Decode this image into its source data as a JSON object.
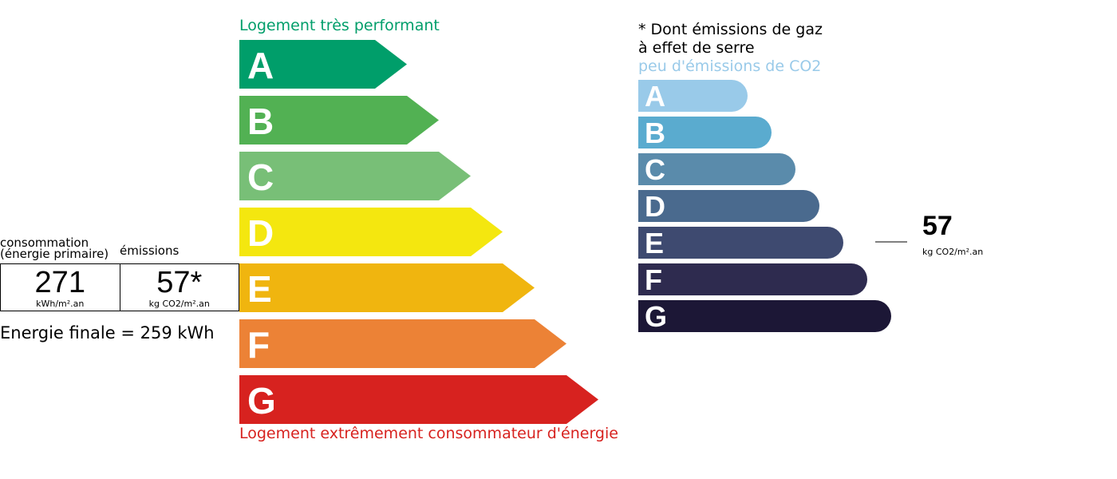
{
  "energy": {
    "title_top": "Logement très performant",
    "title_bottom": "Logement extrêmement consommateur d'énergie",
    "classes": [
      {
        "letter": "A",
        "color": "#009e6a"
      },
      {
        "letter": "B",
        "color": "#52b153"
      },
      {
        "letter": "C",
        "color": "#78bf77"
      },
      {
        "letter": "D",
        "color": "#f4e70f"
      },
      {
        "letter": "E",
        "color": "#f0b50f"
      },
      {
        "letter": "F",
        "color": "#ec8236"
      },
      {
        "letter": "G",
        "color": "#d7221f"
      }
    ]
  },
  "summary": {
    "consumption_label_1": "consommation",
    "consumption_label_2": "(énergie primaire)",
    "emissions_label": "émissions",
    "consumption_value": "271",
    "consumption_unit": "kWh/m².an",
    "emissions_value": "57*",
    "emissions_unit": "kg CO2/m².an",
    "final_energy": "Energie finale = 259 kWh",
    "rating": "E"
  },
  "ges": {
    "note_1": "* Dont émissions de gaz",
    "note_2": "à effet de serre",
    "low_label": "peu d'émissions de CO2",
    "classes": [
      {
        "letter": "A",
        "color": "#99cae9"
      },
      {
        "letter": "B",
        "color": "#5aabcf"
      },
      {
        "letter": "C",
        "color": "#5a8bab"
      },
      {
        "letter": "D",
        "color": "#4a6a8e"
      },
      {
        "letter": "E",
        "color": "#3e4a70"
      },
      {
        "letter": "F",
        "color": "#2e2b4f"
      },
      {
        "letter": "G",
        "color": "#1c1736"
      }
    ],
    "value": "57",
    "unit": "kg CO2/m².an",
    "rating": "E"
  }
}
